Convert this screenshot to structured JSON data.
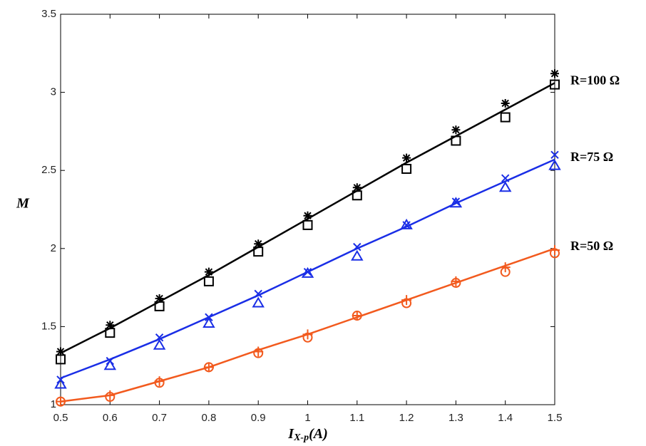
{
  "chart_data": {
    "type": "line",
    "y_label": "M",
    "x_label": [
      "I",
      "X-p",
      "(A)"
    ],
    "x": [
      0.5,
      0.6,
      0.7,
      0.8,
      0.9,
      1,
      1.1,
      1.2,
      1.3,
      1.4,
      1.5
    ],
    "xlim": [
      0.5,
      1.5
    ],
    "xticks": [
      0.5,
      0.6,
      0.7,
      0.8,
      0.9,
      1,
      1.1,
      1.2,
      1.3,
      1.4,
      1.5
    ],
    "ylim": [
      1,
      3.5
    ],
    "yticks": [
      1,
      1.5,
      2,
      2.5,
      3,
      3.5
    ],
    "grid": false,
    "series": [
      {
        "name": "R=100 Ω",
        "color": "#000000",
        "values": [
          1.33,
          1.49,
          1.66,
          1.83,
          2.01,
          2.19,
          2.37,
          2.55,
          2.72,
          2.89,
          3.06
        ],
        "markers": [
          {
            "marker": "asterisk",
            "values": [
              1.34,
              1.51,
              1.68,
              1.85,
              2.03,
              2.21,
              2.39,
              2.58,
              2.76,
              2.93,
              3.12
            ]
          },
          {
            "marker": "square",
            "values": [
              1.29,
              1.46,
              1.63,
              1.79,
              1.98,
              2.15,
              2.34,
              2.51,
              2.69,
              2.84,
              3.05
            ]
          }
        ]
      },
      {
        "name": "R=75 Ω",
        "color": "#1a2ee6",
        "values": [
          1.17,
          1.29,
          1.42,
          1.56,
          1.7,
          1.85,
          2.0,
          2.14,
          2.29,
          2.43,
          2.57
        ],
        "markers": [
          {
            "marker": "x",
            "values": [
              1.16,
              1.28,
              1.43,
              1.56,
              1.71,
              1.85,
              2.01,
              2.15,
              2.3,
              2.45,
              2.6
            ]
          },
          {
            "marker": "triangle",
            "values": [
              1.13,
              1.25,
              1.38,
              1.52,
              1.65,
              1.84,
              1.95,
              2.15,
              2.29,
              2.39,
              2.53
            ]
          }
        ]
      },
      {
        "name": "R=50 Ω",
        "color": "#f25a1e",
        "values": [
          1.02,
          1.06,
          1.15,
          1.24,
          1.35,
          1.45,
          1.56,
          1.67,
          1.78,
          1.89,
          2.0
        ],
        "markers": [
          {
            "marker": "plus",
            "values": [
              1.02,
              1.06,
              1.15,
              1.24,
              1.34,
              1.45,
              1.57,
              1.67,
              1.79,
              1.88,
              1.99
            ]
          },
          {
            "marker": "circle",
            "values": [
              1.02,
              1.05,
              1.14,
              1.24,
              1.33,
              1.43,
              1.57,
              1.65,
              1.78,
              1.85,
              1.97
            ]
          }
        ]
      }
    ]
  }
}
